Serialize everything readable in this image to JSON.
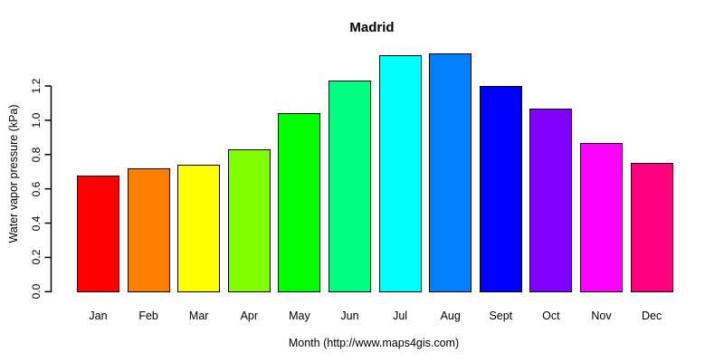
{
  "chart_data": {
    "type": "bar",
    "title": "Madrid",
    "xlabel": "Month (http://www.maps4gis.com)",
    "ylabel": "Water vapor pressure (kPa)",
    "categories": [
      "Jan",
      "Feb",
      "Mar",
      "Apr",
      "May",
      "Jun",
      "Jul",
      "Aug",
      "Sept",
      "Oct",
      "Nov",
      "Dec"
    ],
    "values": [
      0.68,
      0.72,
      0.74,
      0.83,
      1.04,
      1.23,
      1.38,
      1.39,
      1.2,
      1.07,
      0.87,
      0.75
    ],
    "bar_colors": [
      "#FF0000",
      "#FF8000",
      "#FFFF00",
      "#80FF00",
      "#00FF00",
      "#00FF80",
      "#00FFFF",
      "#0080FF",
      "#0000FF",
      "#8000FF",
      "#FF00FF",
      "#FF0080"
    ],
    "bar_border_color": "#000000",
    "y_ticks": [
      "0.0",
      "0.2",
      "0.4",
      "0.6",
      "0.8",
      "1.0",
      "1.2"
    ],
    "ylim": [
      0,
      1.2
    ],
    "grid": false,
    "legend": "none",
    "axis_color": "#000000",
    "background_color": "#FFFFFF",
    "title_color": "#000000"
  }
}
